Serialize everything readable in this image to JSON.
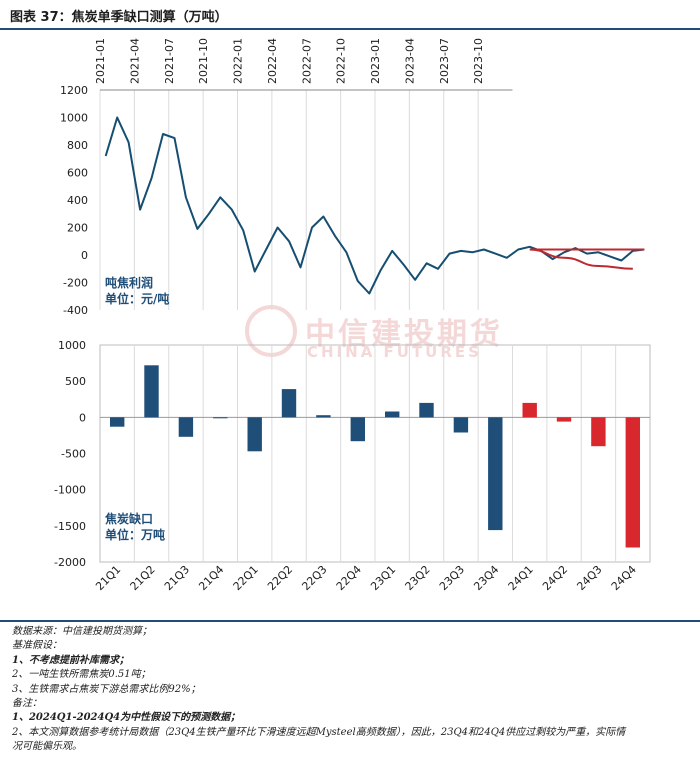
{
  "title": "图表 37：焦炭单季缺口测算（万吨）",
  "watermark": {
    "cn": "中信建投期货",
    "en": "CHINA FUTURES"
  },
  "colors": {
    "navy": "#1f4e79",
    "red": "#d9272e",
    "line_actual": "#164e72",
    "line_forecast": "#c0282f",
    "grid": "#dcdcdc",
    "axis_text": "#1d1d1d"
  },
  "chart_data": [
    {
      "type": "line",
      "series_label_line1": "吨焦利润",
      "series_label_line2": "单位：元/吨",
      "x_ticks": [
        "2021-01",
        "2021-04",
        "2021-07",
        "2021-10",
        "2022-01",
        "2022-04",
        "2022-07",
        "2022-10",
        "2023-01",
        "2023-04",
        "2023-07",
        "2023-10"
      ],
      "ylim": [
        -400,
        1200
      ],
      "y_ticks": [
        -400,
        -200,
        0,
        200,
        400,
        600,
        800,
        1000,
        1200
      ],
      "actual_monthly": [
        720,
        1000,
        820,
        330,
        560,
        880,
        850,
        420,
        190,
        300,
        420,
        330,
        180,
        -120,
        40,
        200,
        100,
        -90,
        200,
        280,
        140,
        20,
        -190,
        -280,
        -110,
        30,
        -70,
        -180,
        -60,
        -100,
        10,
        30,
        20,
        40,
        10,
        -20,
        40,
        60,
        30,
        -30,
        20,
        50,
        10,
        20,
        -10,
        -40,
        30,
        40
      ],
      "forecast_quarterly": [
        40,
        -20,
        -80,
        -100
      ]
    },
    {
      "type": "bar",
      "series_label_line1": "焦炭缺口",
      "series_label_line2": "单位：万吨",
      "categories": [
        "21Q1",
        "21Q2",
        "21Q3",
        "21Q4",
        "22Q1",
        "22Q2",
        "22Q3",
        "22Q4",
        "23Q1",
        "23Q2",
        "23Q3",
        "23Q4",
        "24Q1",
        "24Q2",
        "24Q3",
        "24Q4"
      ],
      "values": [
        -130,
        720,
        -270,
        0,
        -470,
        390,
        30,
        -330,
        80,
        200,
        -210,
        -1560,
        200,
        -60,
        -400,
        -1800
      ],
      "forecast_from_index": 12,
      "ylim": [
        -2000,
        1000
      ],
      "y_ticks": [
        -2000,
        -1500,
        -1000,
        -500,
        0,
        500,
        1000
      ]
    }
  ],
  "notes": [
    {
      "text": "数据来源：中信建投期货测算；",
      "bold": false
    },
    {
      "text": "基准假设：",
      "bold": false
    },
    {
      "text": "1、不考虑提前补库需求；",
      "bold": true
    },
    {
      "text": "2、一吨生铁所需焦炭0.51吨；",
      "bold": false
    },
    {
      "text": "3、生铁需求占焦炭下游总需求比例92%；",
      "bold": false
    },
    {
      "text": "备注：",
      "bold": false
    },
    {
      "text": "1、2024Q1-2024Q4为中性假设下的预测数据；",
      "bold": true
    },
    {
      "text": "2、本文测算数据参考统计局数据（23Q4生铁产量环比下滑速度远超Mysteel高频数据），因此，23Q4和24Q4供应过剩较为严重，实际情",
      "bold": false
    },
    {
      "text": "况可能偏乐观。",
      "bold": false
    }
  ]
}
